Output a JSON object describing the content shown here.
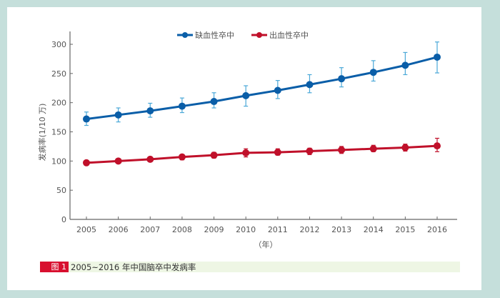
{
  "figure": {
    "caption_tag": "图 1",
    "caption_text": "2005~2016 年中国脑卒中发病率",
    "colors": {
      "background_frame": "#c5dfdb",
      "ischemic": "#0a5ea8",
      "ischemic_error": "#4aa8d8",
      "hemorrhagic": "#c0102a",
      "caption_tag": "#d8102f",
      "caption_bg": "#eef6e4"
    }
  },
  "chart_data": {
    "type": "line",
    "title": "2005~2016 年中国脑卒中发病率",
    "xlabel": "（年）",
    "ylabel": "发病率(1/10 万)",
    "ylim": [
      0,
      300
    ],
    "yticks": [
      0,
      50,
      100,
      150,
      200,
      250,
      300
    ],
    "categories": [
      "2005",
      "2006",
      "2007",
      "2008",
      "2009",
      "2010",
      "2011",
      "2012",
      "2013",
      "2014",
      "2015",
      "2016"
    ],
    "legend_position": "top",
    "grid": false,
    "series": [
      {
        "name": "缺血性卒中",
        "values": [
          172,
          179,
          186,
          194,
          202,
          212,
          221,
          231,
          241,
          252,
          264,
          278
        ],
        "error_low": [
          161,
          167,
          175,
          183,
          191,
          194,
          207,
          217,
          227,
          237,
          248,
          251
        ],
        "error_high": [
          184,
          191,
          199,
          208,
          217,
          229,
          238,
          248,
          260,
          272,
          286,
          304
        ]
      },
      {
        "name": "出血性卒中",
        "values": [
          97,
          100,
          103,
          107,
          110,
          114,
          115,
          117,
          119,
          121,
          123,
          126
        ],
        "error_low": [
          94,
          96,
          99,
          102,
          105,
          107,
          110,
          111,
          113,
          116,
          117,
          116
        ],
        "error_high": [
          100,
          103,
          107,
          111,
          115,
          121,
          121,
          122,
          125,
          127,
          129,
          139
        ]
      }
    ]
  }
}
